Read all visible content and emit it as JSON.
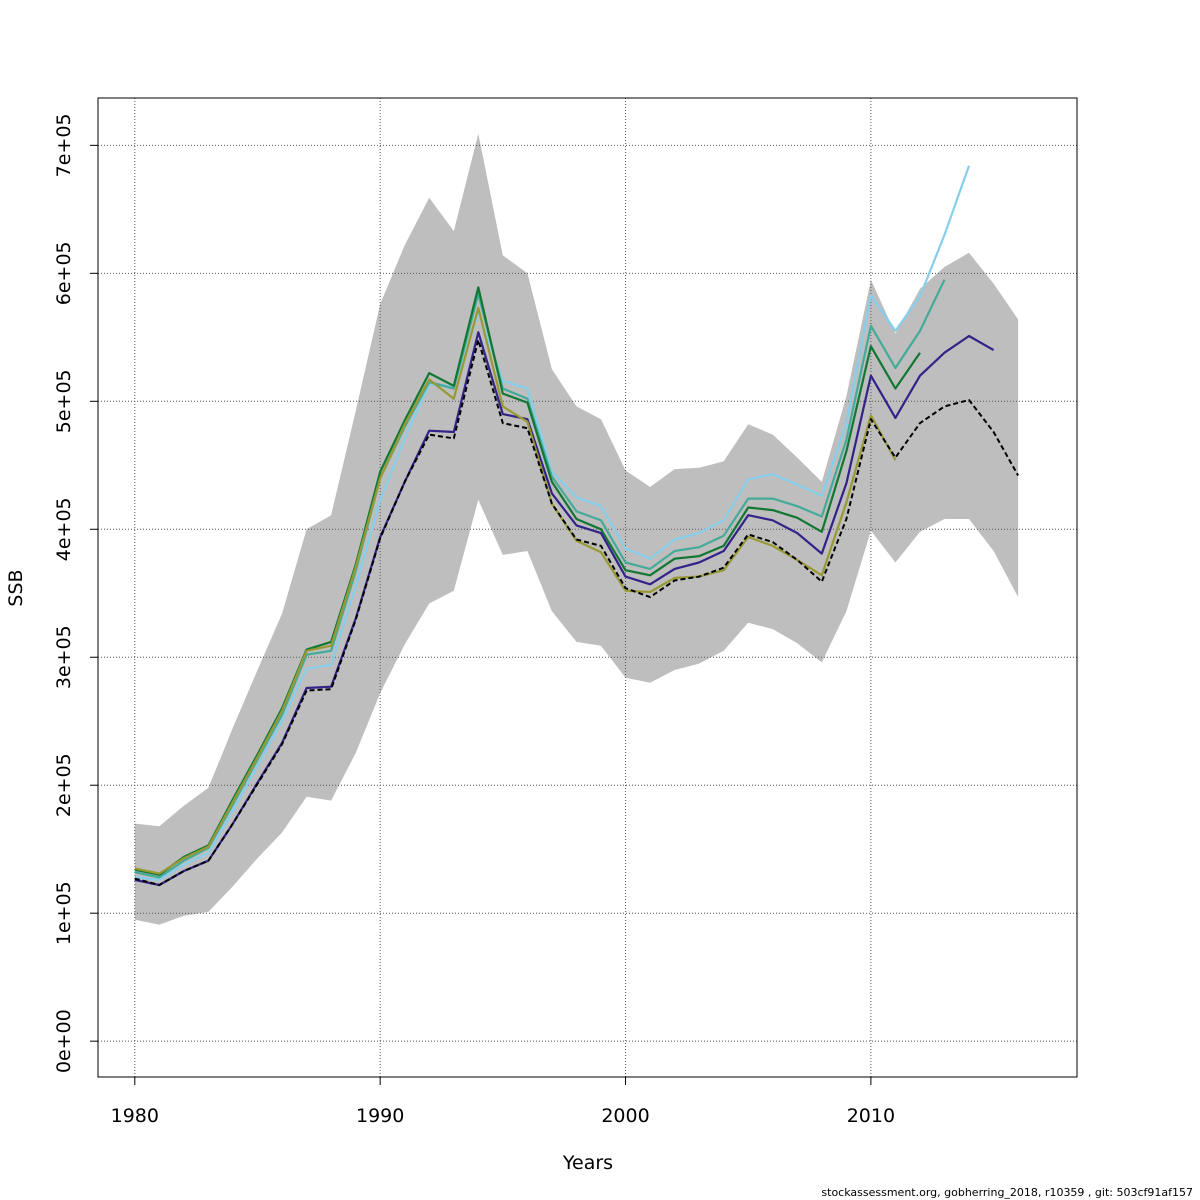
{
  "chart_data": {
    "type": "line",
    "xlabel": "Years",
    "ylabel": "SSB",
    "xlim": [
      1978.5,
      2018.4
    ],
    "ylim": [
      -28000,
      737000
    ],
    "x_ticks": [
      1980,
      1990,
      2000,
      2010
    ],
    "y_ticks": [
      0,
      100000,
      200000,
      300000,
      400000,
      500000,
      600000,
      700000
    ],
    "y_tick_labels": [
      "0e+00",
      "1e+05",
      "2e+05",
      "3e+05",
      "4e+05",
      "5e+05",
      "6e+05",
      "7e+05"
    ],
    "grid": true,
    "confidence_band": {
      "color": "#bebebe",
      "x": [
        1980,
        1981,
        1982,
        1983,
        1984,
        1985,
        1986,
        1987,
        1988,
        1989,
        1990,
        1991,
        1992,
        1993,
        1994,
        1995,
        1996,
        1997,
        1998,
        1999,
        2000,
        2001,
        2002,
        2003,
        2004,
        2005,
        2006,
        2007,
        2008,
        2009,
        2010,
        2011,
        2012,
        2013,
        2014,
        2015,
        2016
      ],
      "lower": [
        95000,
        91000,
        98000,
        101000,
        121000,
        143000,
        163000,
        191000,
        188000,
        225000,
        272000,
        310000,
        342000,
        352000,
        423000,
        380000,
        383000,
        336000,
        312000,
        309000,
        284000,
        280000,
        290000,
        295000,
        305000,
        327000,
        322000,
        311000,
        296000,
        336000,
        399000,
        374000,
        398000,
        408000,
        408000,
        383000,
        347000
      ],
      "upper": [
        170000,
        168000,
        184000,
        198000,
        245000,
        290000,
        334000,
        400000,
        411000,
        492000,
        576000,
        622000,
        659000,
        633000,
        709000,
        614000,
        600000,
        525000,
        496000,
        486000,
        446000,
        433000,
        447000,
        448000,
        453000,
        482000,
        474000,
        456000,
        437000,
        504000,
        595000,
        553000,
        588000,
        605000,
        616000,
        592000,
        564000
      ]
    },
    "series": [
      {
        "color": "#87ceeb",
        "width": 2.2,
        "dash": "",
        "x": [
          1980,
          1981,
          1982,
          1983,
          1984,
          1985,
          1986,
          1987,
          1988,
          1989,
          1990,
          1991,
          1992,
          1993,
          1994,
          1995,
          1996,
          1997,
          1998,
          1999,
          2000,
          2001,
          2002,
          2003,
          2004,
          2005,
          2006,
          2007,
          2008,
          2009,
          2010,
          2011,
          2012,
          2013,
          2014
        ],
        "values": [
          128000,
          126000,
          138000,
          147000,
          180000,
          215000,
          250000,
          291000,
          294000,
          355000,
          423000,
          471000,
          513000,
          512000,
          569000,
          516000,
          510000,
          445000,
          425000,
          418000,
          385000,
          377000,
          392000,
          397000,
          407000,
          439000,
          443000,
          435000,
          426000,
          483000,
          583000,
          555000,
          582000,
          630000,
          684000
        ]
      },
      {
        "color": "#44aa99",
        "width": 2.2,
        "dash": "",
        "x": [
          1980,
          1981,
          1982,
          1983,
          1984,
          1985,
          1986,
          1987,
          1988,
          1989,
          1990,
          1991,
          1992,
          1993,
          1994,
          1995,
          1996,
          1997,
          1998,
          1999,
          2000,
          2001,
          2002,
          2003,
          2004,
          2005,
          2006,
          2007,
          2008,
          2009,
          2010,
          2011,
          2012,
          2013
        ],
        "values": [
          132000,
          128000,
          141000,
          151000,
          185000,
          220000,
          255000,
          302000,
          305000,
          367000,
          440000,
          480000,
          515000,
          510000,
          584000,
          510000,
          502000,
          441000,
          414000,
          407000,
          374000,
          369000,
          383000,
          386000,
          395000,
          424000,
          424000,
          418000,
          410000,
          470000,
          559000,
          526000,
          555000,
          595000
        ]
      },
      {
        "color": "#117733",
        "width": 2.2,
        "dash": "",
        "x": [
          1980,
          1981,
          1982,
          1983,
          1984,
          1985,
          1986,
          1987,
          1988,
          1989,
          1990,
          1991,
          1992,
          1993,
          1994,
          1995,
          1996,
          1997,
          1998,
          1999,
          2000,
          2001,
          2002,
          2003,
          2004,
          2005,
          2006,
          2007,
          2008,
          2009,
          2010,
          2011,
          2012
        ],
        "values": [
          134000,
          130000,
          144000,
          153000,
          189000,
          224000,
          260000,
          306000,
          312000,
          372000,
          445000,
          485000,
          522000,
          512000,
          589000,
          506000,
          499000,
          437000,
          408000,
          400000,
          368000,
          364000,
          377000,
          379000,
          387000,
          417000,
          415000,
          409000,
          398000,
          461000,
          543000,
          510000,
          538000
        ]
      },
      {
        "color": "#332288",
        "width": 2.2,
        "dash": "",
        "x": [
          1980,
          1981,
          1982,
          1983,
          1984,
          1985,
          1986,
          1987,
          1988,
          1989,
          1990,
          1991,
          1992,
          1993,
          1994,
          1995,
          1996,
          1997,
          1998,
          1999,
          2000,
          2001,
          2002,
          2003,
          2004,
          2005,
          2006,
          2007,
          2008,
          2009,
          2010,
          2011,
          2012,
          2013,
          2014,
          2015
        ],
        "values": [
          126000,
          122000,
          133000,
          141000,
          170000,
          202000,
          233000,
          276000,
          277000,
          330000,
          394000,
          437000,
          477000,
          476000,
          554000,
          490000,
          486000,
          428000,
          403000,
          397000,
          363000,
          357000,
          369000,
          374000,
          383000,
          411000,
          407000,
          397000,
          381000,
          436000,
          520000,
          487000,
          520000,
          538000,
          551000,
          540000
        ]
      },
      {
        "color": "#999933",
        "width": 2.2,
        "dash": "",
        "x": [
          1980,
          1981,
          1982,
          1983,
          1984,
          1985,
          1986,
          1987,
          1988,
          1989,
          1990,
          1991,
          1992,
          1993,
          1994,
          1995,
          1996,
          1997,
          1998,
          1999,
          2000,
          2001,
          2002,
          2003,
          2004,
          2005,
          2006,
          2007,
          2008,
          2009,
          2010,
          2011
        ],
        "values": [
          135000,
          131000,
          143000,
          152000,
          187000,
          222000,
          258000,
          305000,
          309000,
          370000,
          440000,
          482000,
          517000,
          502000,
          573000,
          496000,
          484000,
          420000,
          391000,
          382000,
          352000,
          351000,
          362000,
          363000,
          368000,
          394000,
          387000,
          376000,
          364000,
          421000,
          489000,
          454000
        ]
      },
      {
        "color": "#000000",
        "width": 2.0,
        "dash": "5,3",
        "x": [
          1980,
          1981,
          1982,
          1983,
          1984,
          1985,
          1986,
          1987,
          1988,
          1989,
          1990,
          1991,
          1992,
          1993,
          1994,
          1995,
          1996,
          1997,
          1998,
          1999,
          2000,
          2001,
          2002,
          2003,
          2004,
          2005,
          2006,
          2007,
          2008,
          2009,
          2010,
          2011,
          2012,
          2013,
          2014,
          2015,
          2016
        ],
        "values": [
          127000,
          122000,
          133000,
          141000,
          170000,
          201000,
          232000,
          274000,
          275000,
          329000,
          393000,
          437000,
          474000,
          471000,
          548000,
          483000,
          479000,
          420000,
          392000,
          387000,
          354000,
          347000,
          360000,
          363000,
          370000,
          396000,
          390000,
          376000,
          359000,
          408000,
          486000,
          456000,
          483000,
          496000,
          501000,
          476000,
          442000
        ]
      }
    ]
  },
  "footer_text": "stockassessment.org, gobherring_2018, r10359 , git: 503cf91af157"
}
